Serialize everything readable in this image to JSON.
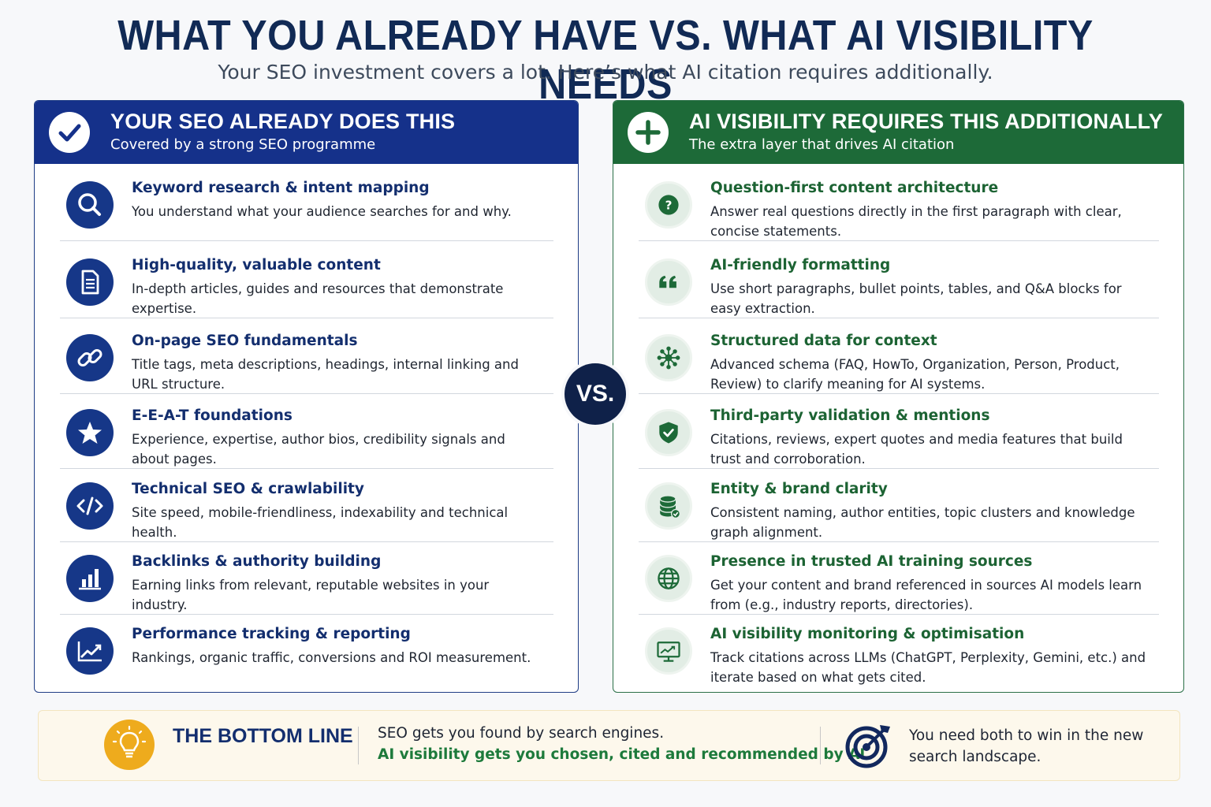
{
  "title": "WHAT YOU ALREADY HAVE VS. WHAT AI VISIBILITY NEEDS",
  "subtitle": "Your SEO investment covers a lot. Here’s what AI citation requires additionally.",
  "colors": {
    "navy": "#15318a",
    "green": "#1d6a38",
    "gold": "#eeab1d",
    "dark": "#0f2149"
  },
  "left": {
    "icon": "checkmark-icon",
    "title": "YOUR SEO ALREADY DOES THIS",
    "subtitle": "Covered by a strong SEO programme",
    "items": [
      {
        "icon": "search-icon",
        "title": "Keyword research & intent mapping",
        "desc": "You understand what your audience searches for and why."
      },
      {
        "icon": "document-icon",
        "title": "High-quality, valuable content",
        "desc": "In-depth articles, guides and resources that demonstrate expertise."
      },
      {
        "icon": "link-icon",
        "title": "On-page SEO fundamentals",
        "desc": "Title tags, meta descriptions, headings, internal linking and URL structure."
      },
      {
        "icon": "star-icon",
        "title": "E-E-A-T foundations",
        "desc": "Experience, expertise, author bios, credibility signals and about pages."
      },
      {
        "icon": "code-icon",
        "title": "Technical SEO & crawlability",
        "desc": "Site speed, mobile-friendliness, indexability and technical health."
      },
      {
        "icon": "bar-chart-icon",
        "title": "Backlinks & authority building",
        "desc": "Earning links from relevant, reputable websites in your industry."
      },
      {
        "icon": "trend-chart-icon",
        "title": "Performance tracking & reporting",
        "desc": "Rankings, organic traffic, conversions and ROI measurement."
      }
    ]
  },
  "right": {
    "icon": "plus-icon",
    "title": "AI VISIBILITY REQUIRES THIS ADDITIONALLY",
    "subtitle": "The extra layer that drives AI citation",
    "items": [
      {
        "icon": "question-icon",
        "title": "Question-first content architecture",
        "desc": "Answer real questions directly in the first paragraph with clear, concise statements."
      },
      {
        "icon": "quote-icon",
        "title": "AI-friendly formatting",
        "desc": "Use short paragraphs, bullet points, tables, and Q&A blocks for easy extraction."
      },
      {
        "icon": "network-icon",
        "title": "Structured data for context",
        "desc": "Advanced schema (FAQ, HowTo, Organization, Person, Product, Review) to clarify meaning for AI systems."
      },
      {
        "icon": "shield-check-icon",
        "title": "Third-party validation & mentions",
        "desc": "Citations, reviews, expert quotes and media features that build trust and corroboration."
      },
      {
        "icon": "database-icon",
        "title": "Entity & brand clarity",
        "desc": "Consistent naming, author entities, topic clusters and knowledge graph alignment."
      },
      {
        "icon": "globe-icon",
        "title": "Presence in trusted AI training sources",
        "desc": "Get your content and brand referenced in sources AI models learn from (e.g., industry reports, directories)."
      },
      {
        "icon": "monitor-chart-icon",
        "title": "AI visibility monitoring & optimisation",
        "desc": "Track citations across LLMs (ChatGPT, Perplexity, Gemini, etc.) and iterate based on what gets cited."
      }
    ]
  },
  "vs": "VS.",
  "bottom": {
    "icon": "lightbulb-icon",
    "title": "THE BOTTOM LINE",
    "line1": "SEO gets you found by search engines.",
    "line2": "AI visibility gets you chosen, cited and recommended by AI.",
    "target_icon": "target-icon",
    "right_text": "You need both to win in the new search landscape."
  }
}
